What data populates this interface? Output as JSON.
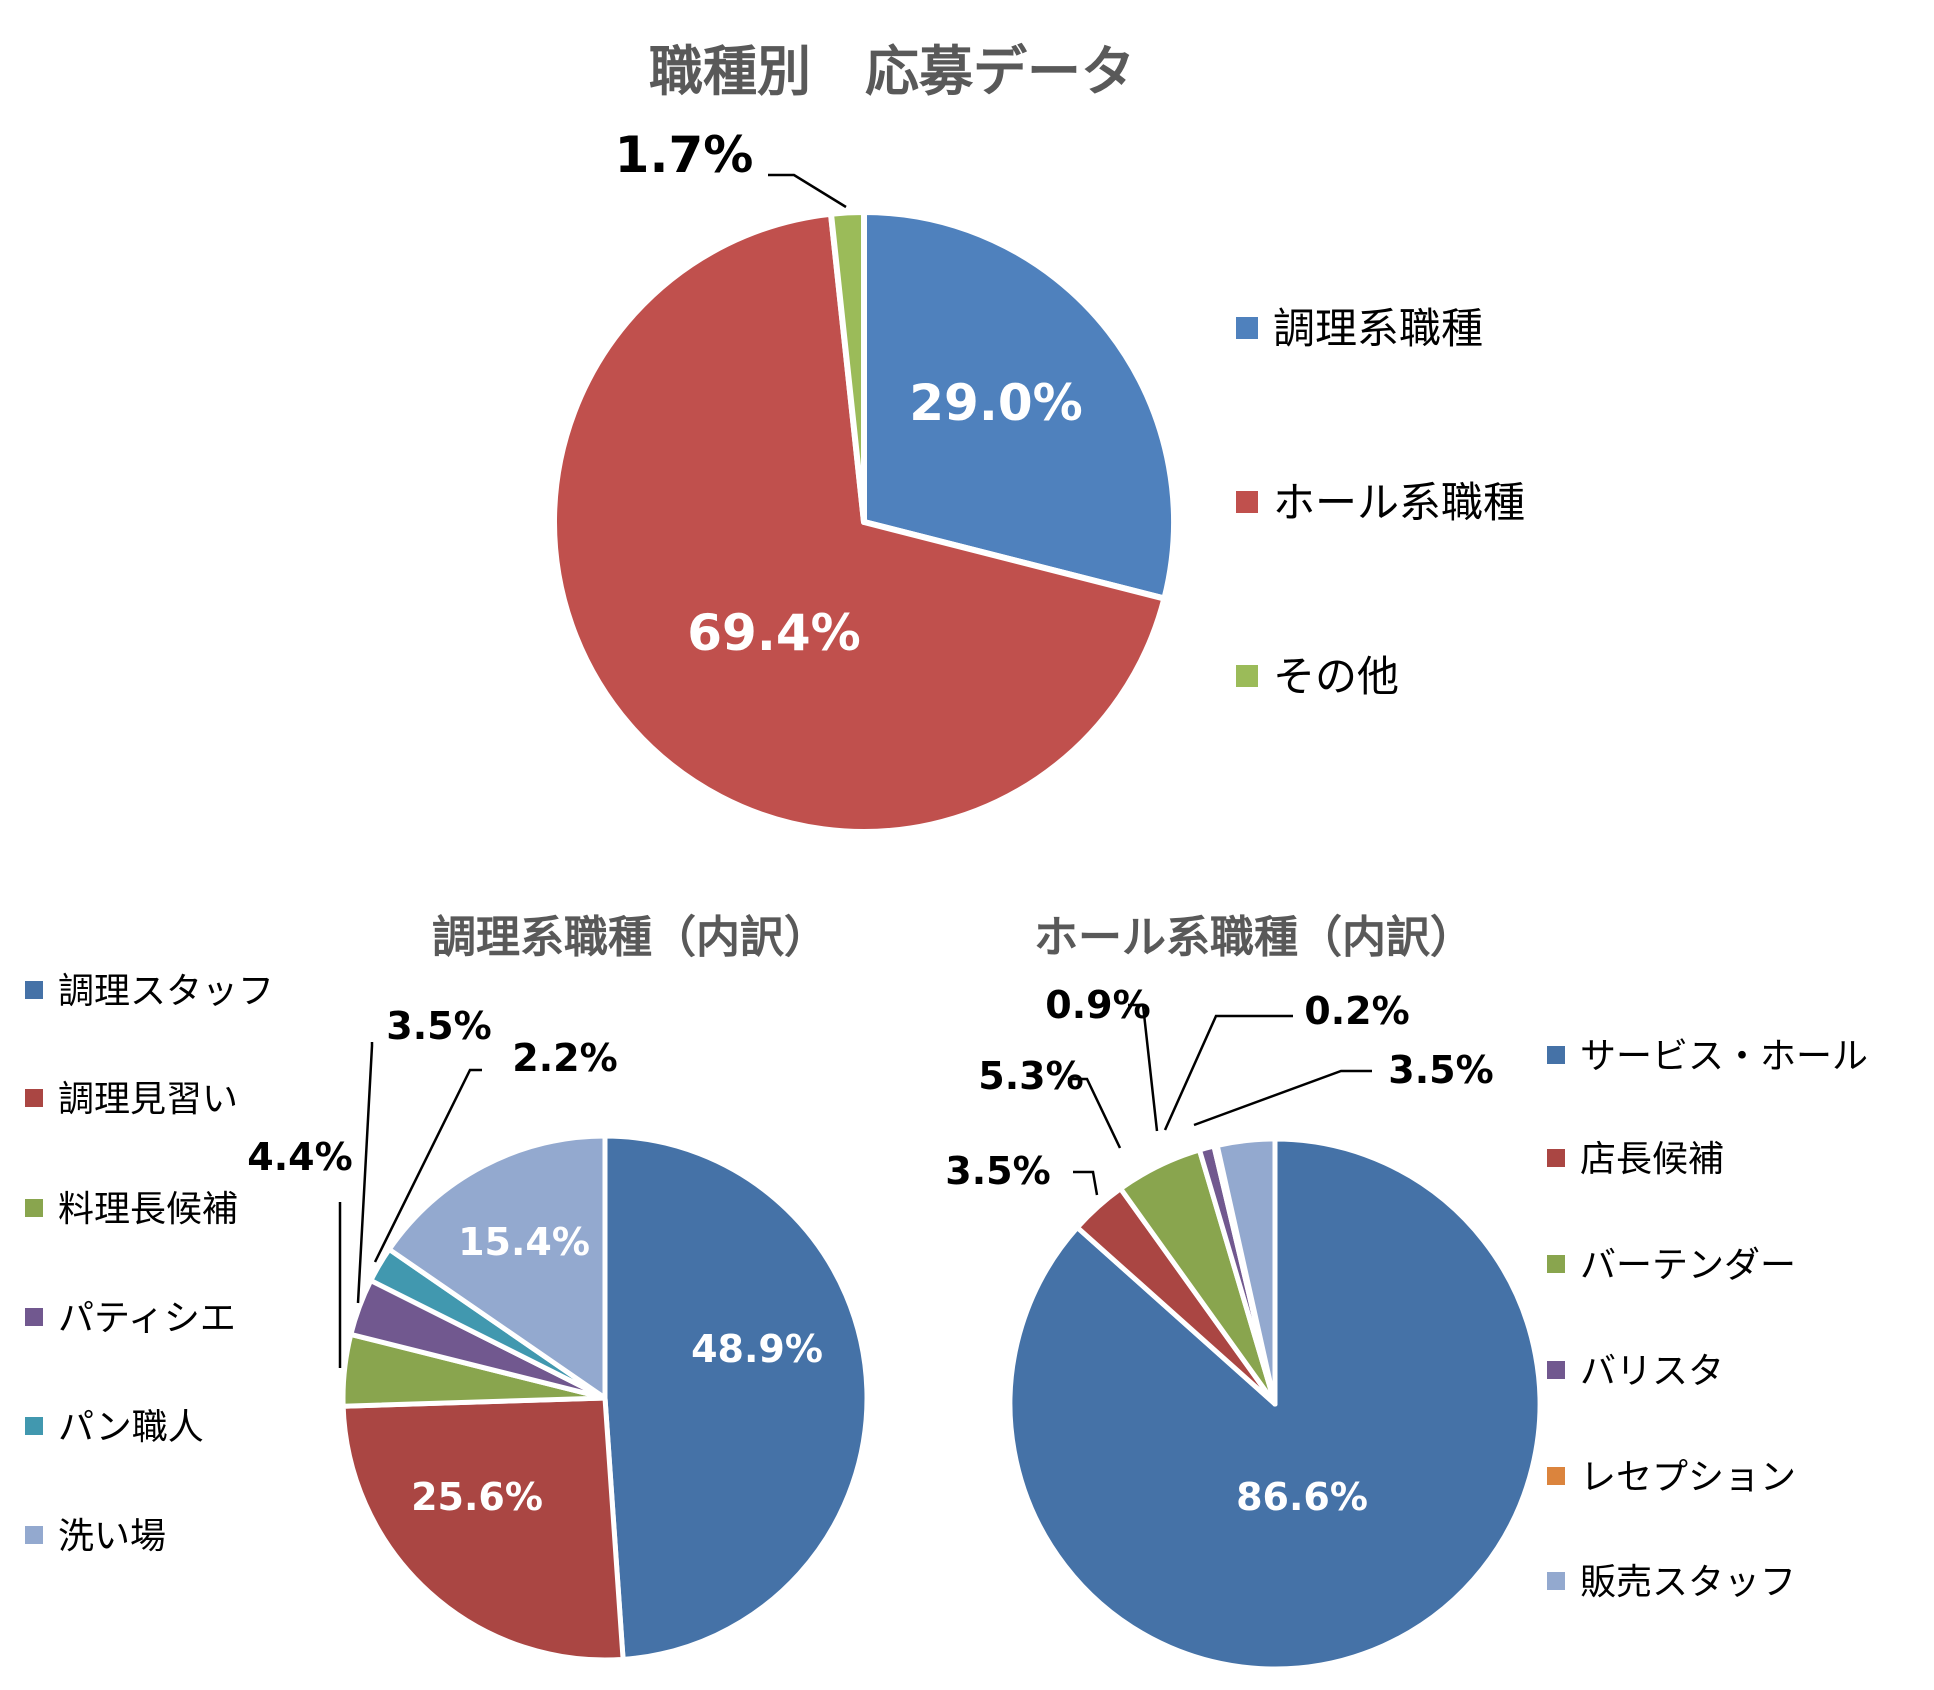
{
  "chart_data": [
    {
      "type": "pie",
      "title": "職種別　応募データ",
      "categories": [
        "調理系職種",
        "ホール系職種",
        "その他"
      ],
      "values": [
        29.0,
        69.4,
        1.7
      ],
      "labels": [
        "29.0%",
        "69.4%",
        "1.7%"
      ],
      "colors": [
        "#4F81BD",
        "#C0504D",
        "#9BBB59"
      ],
      "legend": "right"
    },
    {
      "type": "pie",
      "title": "調理系職種（内訳）",
      "categories": [
        "調理スタッフ",
        "調理見習い",
        "料理長候補",
        "パティシエ",
        "パン職人",
        "洗い場"
      ],
      "values": [
        48.9,
        25.6,
        4.4,
        3.5,
        2.2,
        15.4
      ],
      "labels": [
        "48.9%",
        "25.6%",
        "4.4%",
        "3.5%",
        "2.2%",
        "15.4%"
      ],
      "colors": [
        "#4572A7",
        "#AA4643",
        "#89A54E",
        "#71588F",
        "#4198AF",
        "#93A9CF"
      ],
      "legend": "left"
    },
    {
      "type": "pie",
      "title": "ホール系職種（内訳）",
      "categories": [
        "サービス・ホール",
        "店長候補",
        "バーテンダー",
        "バリスタ",
        "レセプション",
        "販売スタッフ"
      ],
      "values": [
        86.6,
        3.5,
        5.3,
        0.9,
        0.2,
        3.5
      ],
      "labels": [
        "86.6%",
        "3.5%",
        "5.3%",
        "0.9%",
        "0.2%",
        "3.5%"
      ],
      "colors": [
        "#4572A7",
        "#AA4643",
        "#89A54E",
        "#71588F",
        "#DB843D",
        "#93A9CF"
      ],
      "legend": "right"
    }
  ]
}
